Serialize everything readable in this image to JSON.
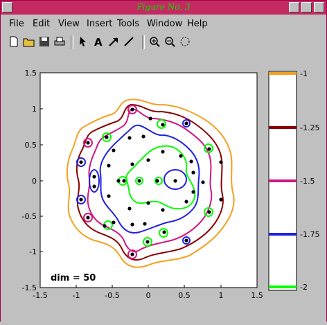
{
  "window": {
    "title": "Figure No. 3"
  },
  "menu": [
    "File",
    "Edit",
    "View",
    "Insert",
    "Tools",
    "Window",
    "Help"
  ],
  "toolbar_icons": [
    "new-file-icon",
    "open-folder-icon",
    "save-icon",
    "print-icon",
    "arrow-select-icon",
    "text-tool-icon",
    "arrow-tool-icon",
    "line-tool-icon",
    "zoom-in-icon",
    "zoom-out-icon",
    "rotate-icon"
  ],
  "plot": {
    "annotation": "dim = 50",
    "xlim": [
      -1.5,
      1.5
    ],
    "ylim": [
      -1.5,
      1.5
    ],
    "xticks": [
      "-1.5",
      "-1",
      "-0.5",
      "0",
      "0.5",
      "1",
      "1.5"
    ],
    "yticks": [
      "1.5",
      "1",
      "0.5",
      "0",
      "-0.5",
      "-1",
      "-1.5"
    ]
  },
  "colorbar": {
    "ticks": [
      "-1",
      "-1.25",
      "-1.5",
      "-1.75",
      "-2"
    ],
    "colors": [
      "#f5a020",
      "#8b0000",
      "#d01880",
      "#2020e0",
      "#00ff00"
    ]
  },
  "colors": {
    "title_bar": "#c42a62",
    "title_text": "#00e000"
  }
}
